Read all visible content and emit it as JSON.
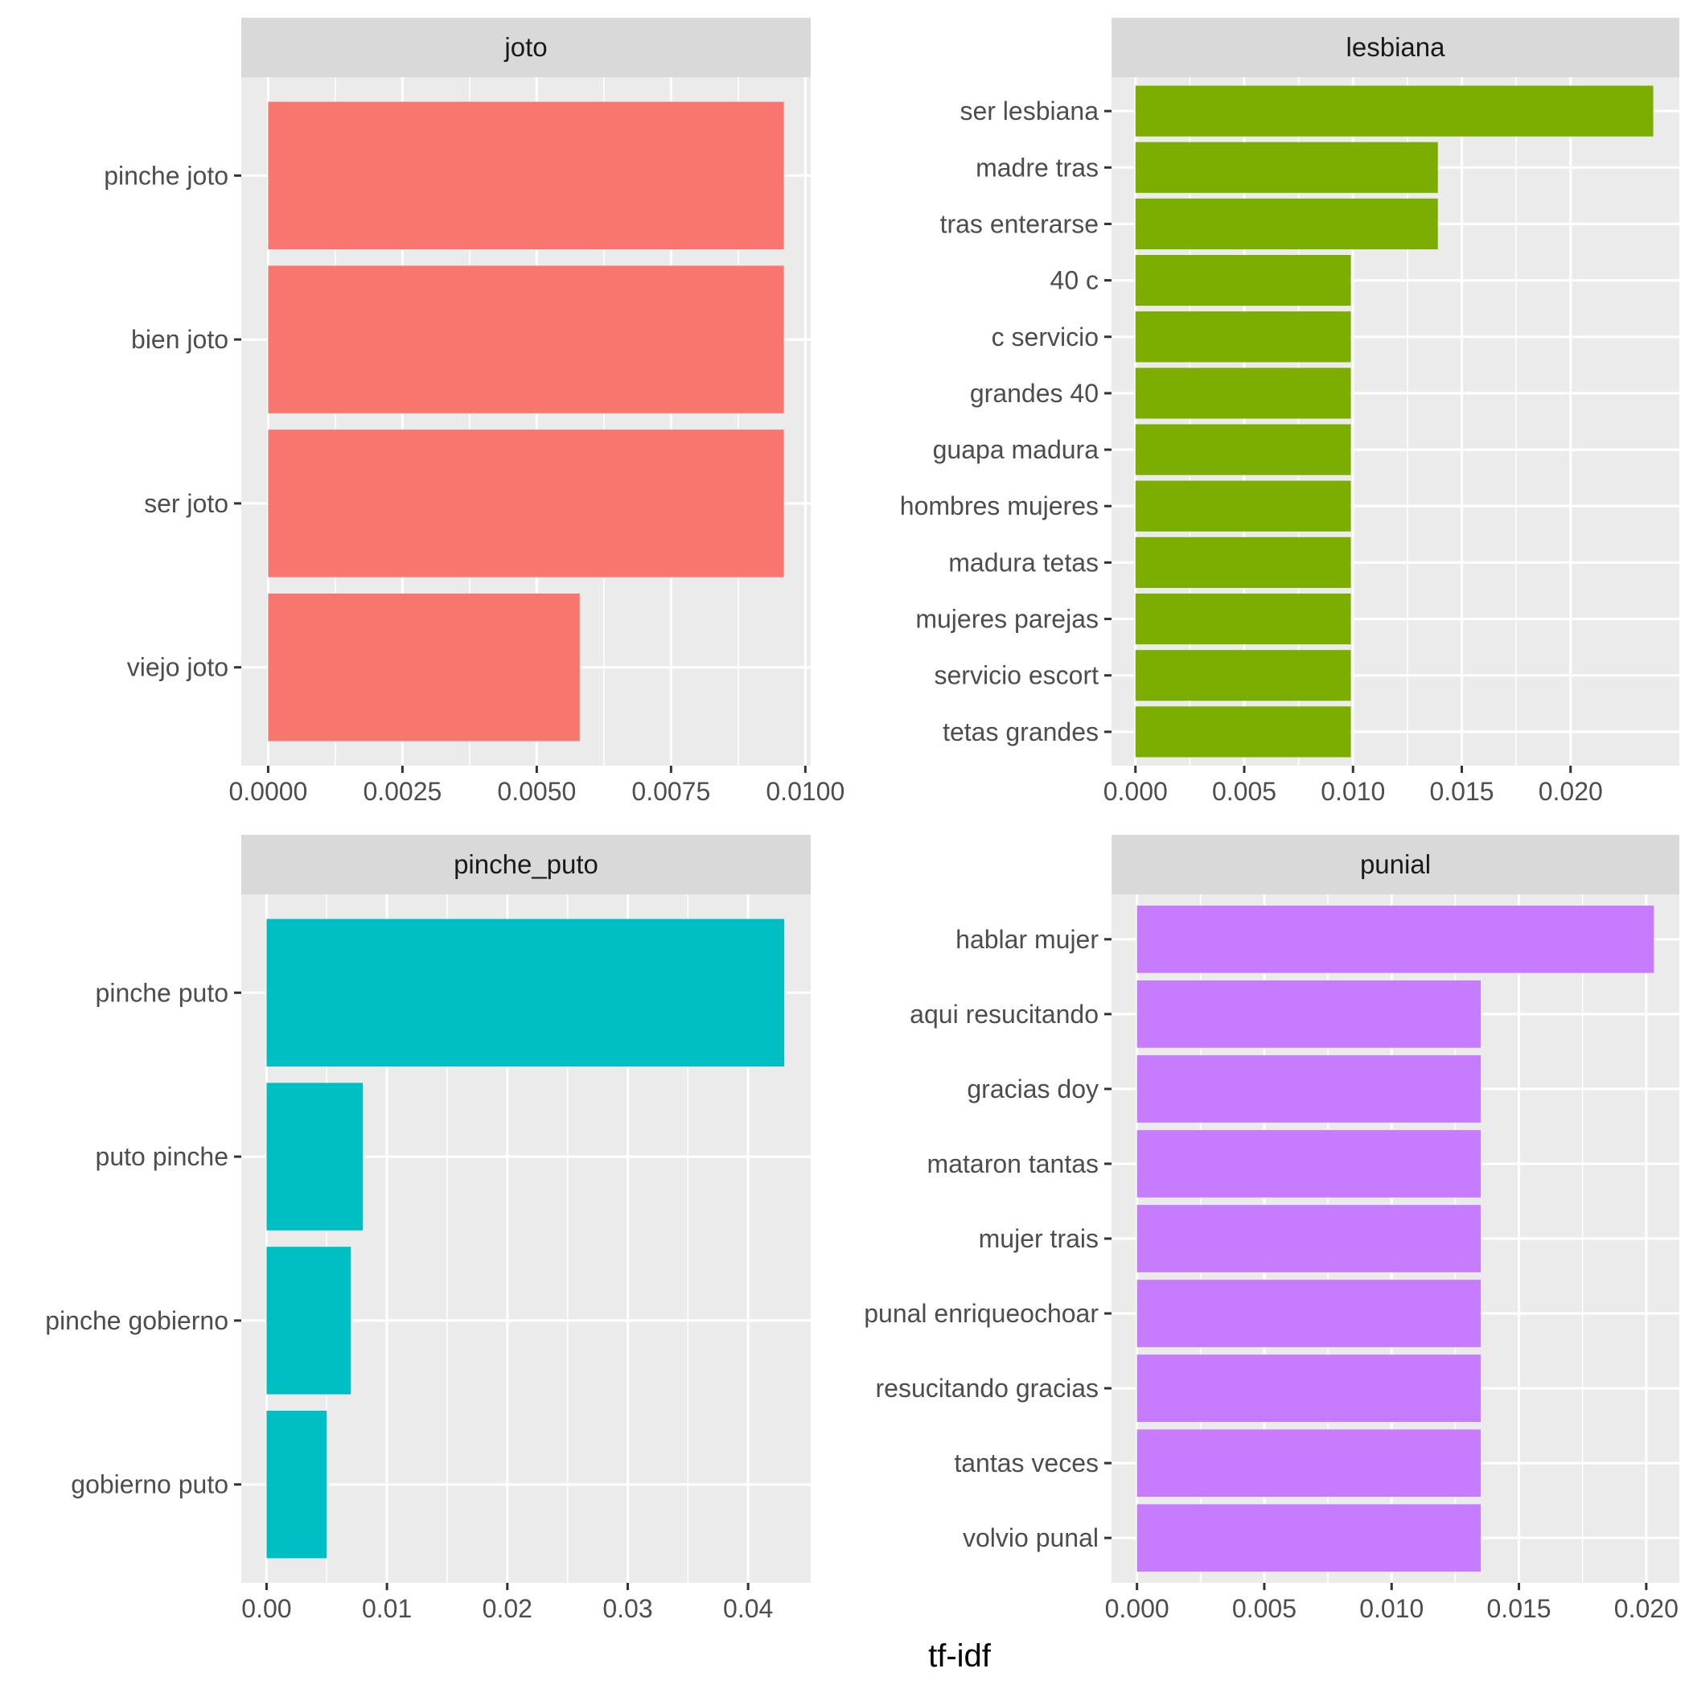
{
  "chart_data": {
    "type": "bar",
    "orientation": "horizontal",
    "xlabel": "tf-idf",
    "ylabel": "",
    "grid": true,
    "legend": "none",
    "panels": [
      {
        "title": "joto",
        "color": "#F8766D",
        "categories": [
          "pinche joto",
          "bien joto",
          "ser joto",
          "viejo joto"
        ],
        "values": [
          0.0096,
          0.0096,
          0.0096,
          0.0058
        ],
        "xlim": [
          -0.0005,
          0.0101
        ],
        "ticks": [
          0,
          0.0025,
          0.005,
          0.0075,
          0.01
        ],
        "tick_labels": [
          "0.0000",
          "0.0025",
          "0.0050",
          "0.0075",
          "0.0100"
        ]
      },
      {
        "title": "lesbiana",
        "color": "#7CAE00",
        "categories": [
          "ser lesbiana",
          "madre tras",
          "tras enterarse",
          "40 c",
          "c servicio",
          "grandes 40",
          "guapa madura",
          "hombres mujeres",
          "madura tetas",
          "mujeres parejas",
          "servicio escort",
          "tetas grandes"
        ],
        "values": [
          0.0238,
          0.0139,
          0.0139,
          0.0099,
          0.0099,
          0.0099,
          0.0099,
          0.0099,
          0.0099,
          0.0099,
          0.0099,
          0.0099
        ],
        "xlim": [
          -0.0011,
          0.025
        ],
        "ticks": [
          0,
          0.005,
          0.01,
          0.015,
          0.02
        ],
        "tick_labels": [
          "0.000",
          "0.005",
          "0.010",
          "0.015",
          "0.020"
        ]
      },
      {
        "title": "pinche_puto",
        "color": "#00BFC4",
        "categories": [
          "pinche puto",
          "puto pinche",
          "pinche gobierno",
          "gobierno puto"
        ],
        "values": [
          0.043,
          0.008,
          0.007,
          0.005
        ],
        "xlim": [
          -0.0021,
          0.0452
        ],
        "ticks": [
          0,
          0.01,
          0.02,
          0.03,
          0.04
        ],
        "tick_labels": [
          "0.00",
          "0.01",
          "0.02",
          "0.03",
          "0.04"
        ]
      },
      {
        "title": "punial",
        "color": "#C77CFF",
        "categories": [
          "hablar mujer",
          "aqui resucitando",
          "gracias doy",
          "mataron tantas",
          "mujer trais",
          "punal enriqueochoar",
          "resucitando gracias",
          "tantas veces",
          "volvio punal"
        ],
        "values": [
          0.0203,
          0.0135,
          0.0135,
          0.0135,
          0.0135,
          0.0135,
          0.0135,
          0.0135,
          0.0135
        ],
        "xlim": [
          -0.001,
          0.0213
        ],
        "ticks": [
          0,
          0.005,
          0.01,
          0.015,
          0.02
        ],
        "tick_labels": [
          "0.000",
          "0.005",
          "0.010",
          "0.015",
          "0.020"
        ]
      }
    ]
  }
}
